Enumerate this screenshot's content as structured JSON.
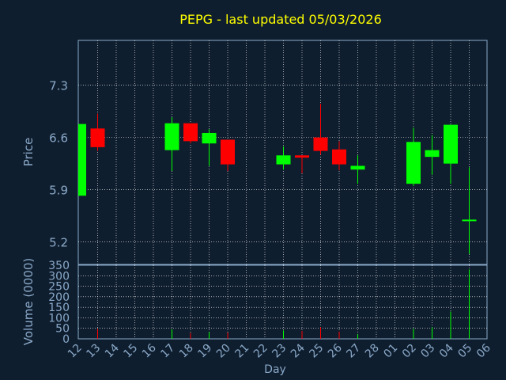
{
  "colors": {
    "background": "#0f1e2e",
    "title": "#ffff00",
    "axis_text": "#8aa9c9",
    "frame": "#8aa9c9",
    "grid": "#ffffff",
    "up": "#00ff00",
    "down": "#ff0000"
  },
  "chart_data": {
    "type": "candlestick",
    "title": "PEPG - last updated 05/03/2026",
    "xlabel": "Day",
    "x_ticks": [
      "12",
      "13",
      "14",
      "15",
      "16",
      "17",
      "18",
      "19",
      "20",
      "21",
      "22",
      "23",
      "24",
      "25",
      "26",
      "27",
      "28",
      "01",
      "02",
      "03",
      "04",
      "05",
      "06"
    ],
    "price_panel": {
      "ylabel": "Price",
      "y_ticks": [
        7.3,
        6.6,
        5.9,
        5.2
      ],
      "ylim": [
        4.9,
        7.9
      ],
      "grid": true
    },
    "volume_panel": {
      "ylabel": "Volume (0000)",
      "y_ticks": [
        0,
        50,
        100,
        150,
        200,
        250,
        300,
        350
      ],
      "ylim": [
        0,
        350
      ],
      "grid": true
    },
    "candles": [
      {
        "day": "12",
        "open": 5.82,
        "high": 6.78,
        "low": 5.82,
        "close": 6.78,
        "volume": 0
      },
      {
        "day": "13",
        "open": 6.72,
        "high": 6.92,
        "low": 6.42,
        "close": 6.47,
        "volume": 48
      },
      {
        "day": "17",
        "open": 6.43,
        "high": 6.87,
        "low": 6.15,
        "close": 6.79,
        "volume": 45
      },
      {
        "day": "18",
        "open": 6.79,
        "high": 6.79,
        "low": 6.52,
        "close": 6.55,
        "volume": 28
      },
      {
        "day": "19",
        "open": 6.52,
        "high": 6.71,
        "low": 6.22,
        "close": 6.66,
        "volume": 32
      },
      {
        "day": "20",
        "open": 6.57,
        "high": 6.57,
        "low": 6.15,
        "close": 6.24,
        "volume": 30
      },
      {
        "day": "23",
        "open": 6.24,
        "high": 6.48,
        "low": 6.17,
        "close": 6.36,
        "volume": 40
      },
      {
        "day": "24",
        "open": 6.36,
        "high": 6.36,
        "low": 6.12,
        "close": 6.33,
        "volume": 38
      },
      {
        "day": "25",
        "open": 6.6,
        "high": 7.05,
        "low": 6.37,
        "close": 6.42,
        "volume": 55
      },
      {
        "day": "26",
        "open": 6.44,
        "high": 6.55,
        "low": 6.16,
        "close": 6.24,
        "volume": 35
      },
      {
        "day": "27",
        "open": 6.17,
        "high": 6.36,
        "low": 5.98,
        "close": 6.22,
        "volume": 22
      },
      {
        "day": "02",
        "open": 5.98,
        "high": 6.73,
        "low": 5.95,
        "close": 6.54,
        "volume": 48
      },
      {
        "day": "03",
        "open": 6.34,
        "high": 6.63,
        "low": 6.1,
        "close": 6.43,
        "volume": 55
      },
      {
        "day": "04",
        "open": 6.25,
        "high": 6.77,
        "low": 5.98,
        "close": 6.77,
        "volume": 130
      },
      {
        "day": "05",
        "open": 5.5,
        "high": 6.2,
        "low": 5.04,
        "close": 5.5,
        "volume": 330
      }
    ]
  }
}
